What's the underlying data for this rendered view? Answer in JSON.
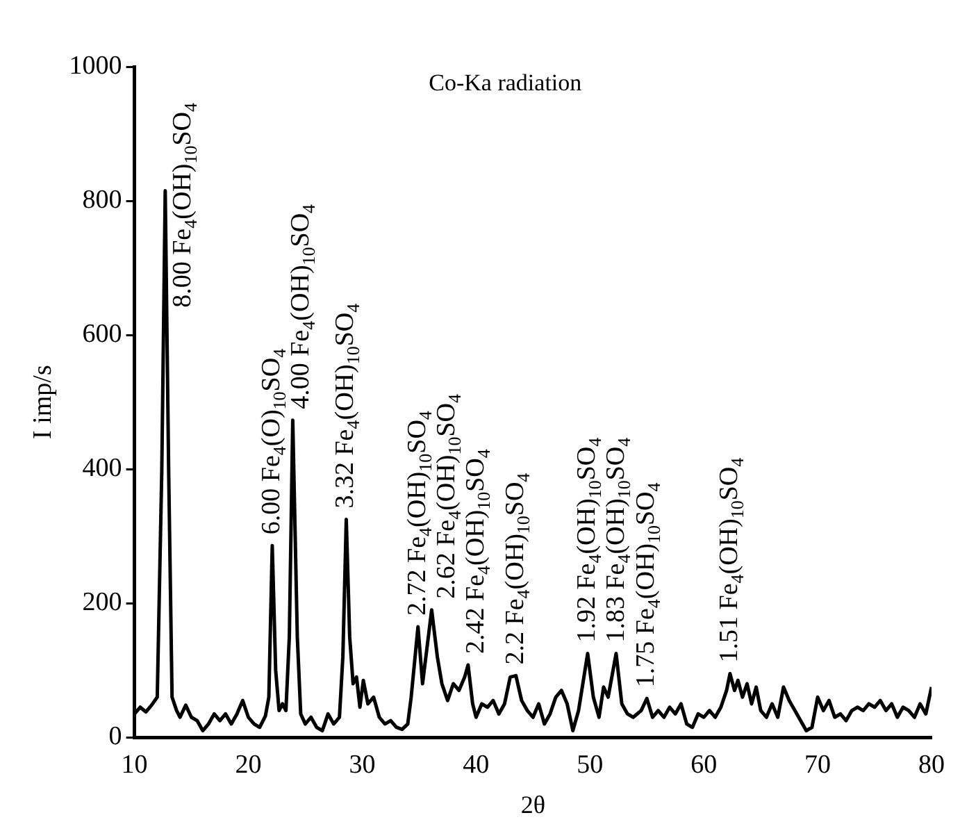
{
  "chart_data": {
    "type": "line",
    "title": "Co-Ka radiation",
    "xlabel": "2θ",
    "ylabel": "I imp/s",
    "xlim": [
      10,
      80
    ],
    "xticks": [
      10,
      20,
      30,
      40,
      50,
      60,
      70,
      80
    ],
    "ylim": [
      0,
      1000
    ],
    "yticks": [
      0,
      200,
      400,
      600,
      800,
      1000
    ],
    "grid": false,
    "legend": false,
    "marker": "none",
    "line_style": "solid",
    "series": [
      {
        "color": "#000000",
        "x": [
          10,
          10.5,
          11,
          11.5,
          12,
          12.4,
          12.7,
          13,
          13.3,
          13.7,
          14,
          14.5,
          15,
          15.5,
          16,
          16.5,
          17,
          17.5,
          18,
          18.5,
          19,
          19.5,
          20,
          20.5,
          21,
          21.5,
          21.8,
          22.1,
          22.4,
          22.7,
          23,
          23.3,
          23.6,
          23.9,
          24.3,
          24.6,
          25,
          25.5,
          26,
          26.5,
          27,
          27.5,
          28,
          28.3,
          28.6,
          28.9,
          29.2,
          29.5,
          29.8,
          30.1,
          30.5,
          31,
          31.5,
          32,
          32.5,
          33,
          33.5,
          34,
          34.3,
          34.9,
          35.3,
          36.1,
          36.6,
          37,
          37.5,
          38,
          38.5,
          39,
          39.3,
          39.7,
          40,
          40.5,
          41,
          41.5,
          42,
          42.5,
          43,
          43.5,
          44,
          44.5,
          45,
          45.5,
          46,
          46.5,
          47,
          47.5,
          48,
          48.5,
          49,
          49.8,
          50.3,
          50.8,
          51.2,
          51.6,
          52.3,
          52.8,
          53.3,
          53.8,
          54.5,
          55,
          55.5,
          56,
          56.5,
          57,
          57.5,
          58,
          58.5,
          59,
          59.5,
          60,
          60.5,
          61,
          61.5,
          62,
          62.3,
          62.7,
          63,
          63.4,
          63.8,
          64.2,
          64.6,
          65,
          65.5,
          66,
          66.5,
          67,
          67.5,
          68,
          68.5,
          69,
          69.5,
          70,
          70.5,
          71,
          71.5,
          72,
          72.5,
          73,
          73.5,
          74,
          74.5,
          75,
          75.5,
          76,
          76.5,
          77,
          77.5,
          78,
          78.5,
          79,
          79.5,
          80
        ],
        "values": [
          35,
          45,
          38,
          48,
          60,
          400,
          815,
          400,
          60,
          40,
          30,
          48,
          30,
          25,
          10,
          20,
          35,
          25,
          35,
          20,
          35,
          55,
          30,
          20,
          15,
          32,
          60,
          286,
          100,
          40,
          50,
          40,
          150,
          473,
          150,
          35,
          20,
          30,
          15,
          10,
          35,
          20,
          30,
          120,
          325,
          150,
          80,
          90,
          45,
          85,
          50,
          60,
          30,
          20,
          25,
          15,
          12,
          20,
          60,
          165,
          80,
          190,
          120,
          80,
          55,
          80,
          70,
          90,
          108,
          50,
          30,
          50,
          45,
          55,
          35,
          50,
          90,
          92,
          55,
          40,
          30,
          50,
          20,
          35,
          60,
          70,
          50,
          10,
          40,
          125,
          60,
          30,
          75,
          60,
          125,
          50,
          35,
          30,
          40,
          58,
          30,
          40,
          30,
          45,
          35,
          50,
          20,
          15,
          35,
          30,
          40,
          30,
          45,
          70,
          95,
          70,
          85,
          60,
          80,
          50,
          75,
          40,
          30,
          50,
          30,
          75,
          55,
          40,
          25,
          10,
          15,
          60,
          40,
          55,
          30,
          35,
          25,
          40,
          45,
          40,
          50,
          45,
          55,
          40,
          50,
          30,
          45,
          40,
          30,
          50,
          35,
          75
        ]
      }
    ],
    "annotations": [
      {
        "text": "8.00 Fe$_{4}$(OH)$_{10}$SO$_{4}$",
        "x": 12.7,
        "y": 815
      },
      {
        "text": "6.00 Fe$_{4}$(O)$_{10}$SO$_{4}$",
        "x": 22.1,
        "y": 286
      },
      {
        "text": "4.00 Fe$_{4}$(OH)$_{10}$SO$_{4}$",
        "x": 23.9,
        "y": 473
      },
      {
        "text": "3.32 Fe$_{4}$(OH)$_{10}$SO$_{4}$",
        "x": 28.6,
        "y": 325
      },
      {
        "text": "2.72 Fe$_{4}$(OH)$_{10}$SO$_{4}$",
        "x": 34.9,
        "y": 165
      },
      {
        "text": "2.62 Fe$_{4}$(OH)$_{10}$SO$_{4}$",
        "x": 36.1,
        "y": 190
      },
      {
        "text": "2.42 Fe$_{4}$(OH)$_{10}$SO$_{4}$",
        "x": 39.3,
        "y": 108
      },
      {
        "text": "2.2 Fe$_{4}$(OH)$_{10}$SO$_{4}$",
        "x": 43.5,
        "y": 92
      },
      {
        "text": "1.92 Fe$_{4}$(OH)$_{10}$SO$_{4}$",
        "x": 49.8,
        "y": 125
      },
      {
        "text": "1.83 Fe$_{4}$(OH)$_{10}$SO$_{4}$",
        "x": 52.3,
        "y": 125
      },
      {
        "text": "1.75 Fe$_{4}$(OH)$_{10}$SO$_{4}$",
        "x": 55,
        "y": 58
      },
      {
        "text": "1.51 Fe$_{4}$(OH)$_{10}$SO$_{4}$",
        "x": 62.3,
        "y": 95
      }
    ]
  }
}
